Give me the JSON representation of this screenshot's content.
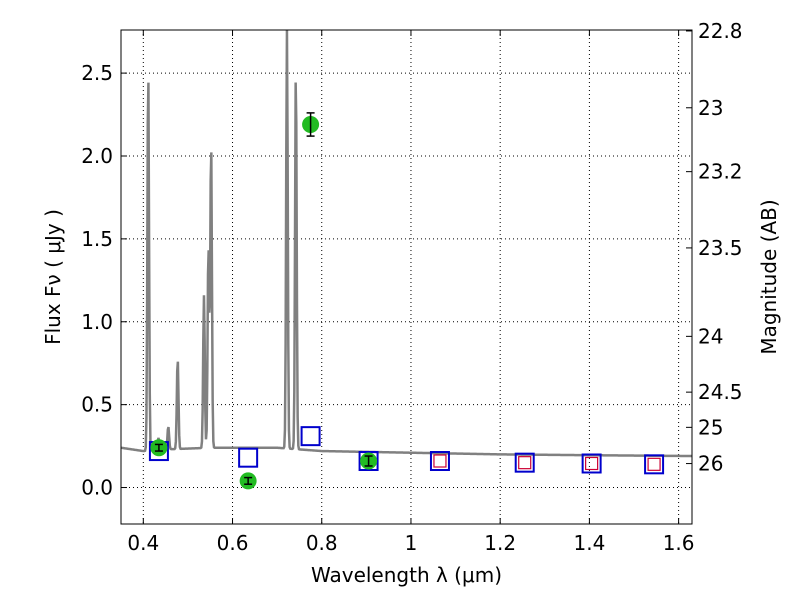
{
  "chart_data": {
    "type": "scatter",
    "xlabel": "Wavelength  λ (μm)",
    "ylabel": "Flux  Fν  ( μJy )",
    "y2label": "Magnitude (AB)",
    "xlim": [
      0.35,
      1.63
    ],
    "ylim": [
      -0.22,
      2.76
    ],
    "grid": true,
    "x_ticks": [
      0.4,
      0.6,
      0.8,
      1.0,
      1.2,
      1.4,
      1.6
    ],
    "x_tick_labels": [
      "0.4",
      "0.6",
      "0.8",
      "1",
      "1.2",
      "1.4",
      "1.6"
    ],
    "y_ticks": [
      0.0,
      0.5,
      1.0,
      1.5,
      2.0,
      2.5
    ],
    "y_tick_labels": [
      "0.0",
      "0.5",
      "1.0",
      "1.5",
      "2.0",
      "2.5"
    ],
    "y2_ticks": [
      22.8,
      23,
      23.2,
      23.5,
      24,
      24.5,
      25,
      26
    ],
    "y2_tick_labels": [
      "22.8",
      "23",
      "23.2",
      "23.5",
      "24",
      "24.5",
      "25",
      "26"
    ],
    "series": [
      {
        "kind": "line",
        "color": "#808080",
        "continuum": [
          [
            0.35,
            0.24
          ],
          [
            0.4,
            0.22
          ],
          [
            0.45,
            0.23
          ],
          [
            0.55,
            0.24
          ],
          [
            0.7,
            0.24
          ],
          [
            0.8,
            0.22
          ],
          [
            1.0,
            0.21
          ],
          [
            1.2,
            0.2
          ],
          [
            1.4,
            0.195
          ],
          [
            1.63,
            0.19
          ]
        ],
        "emission_lines": [
          {
            "x": 0.411,
            "peak": 2.53
          },
          {
            "x": 0.434,
            "peak": 0.3
          },
          {
            "x": 0.456,
            "peak": 0.37
          },
          {
            "x": 0.477,
            "peak": 0.78
          },
          {
            "x": 0.536,
            "peak": 1.16
          },
          {
            "x": 0.546,
            "peak": 1.46
          },
          {
            "x": 0.552,
            "peak": 2.09
          },
          {
            "x": 0.722,
            "peak": 2.76
          },
          {
            "x": 0.742,
            "peak": 2.53
          }
        ]
      },
      {
        "kind": "points",
        "marker": "open-square",
        "color": "#0000cc",
        "x": [
          0.435,
          0.635,
          0.775,
          0.905,
          1.065,
          1.255,
          1.405,
          1.545
        ],
        "y": [
          0.22,
          0.18,
          0.31,
          0.16,
          0.16,
          0.15,
          0.145,
          0.14
        ]
      },
      {
        "kind": "points",
        "marker": "small-open-square",
        "color": "#cc0033",
        "x": [
          1.065,
          1.255,
          1.405,
          1.545
        ],
        "y": [
          0.16,
          0.15,
          0.145,
          0.14
        ]
      },
      {
        "kind": "points",
        "marker": "filled-circle",
        "color": "#22bb22",
        "x": [
          0.435,
          0.635,
          0.775,
          0.905
        ],
        "y": [
          0.24,
          0.04,
          2.19,
          0.16
        ],
        "yerr": [
          0.02,
          0.02,
          0.07,
          0.03
        ]
      }
    ]
  }
}
